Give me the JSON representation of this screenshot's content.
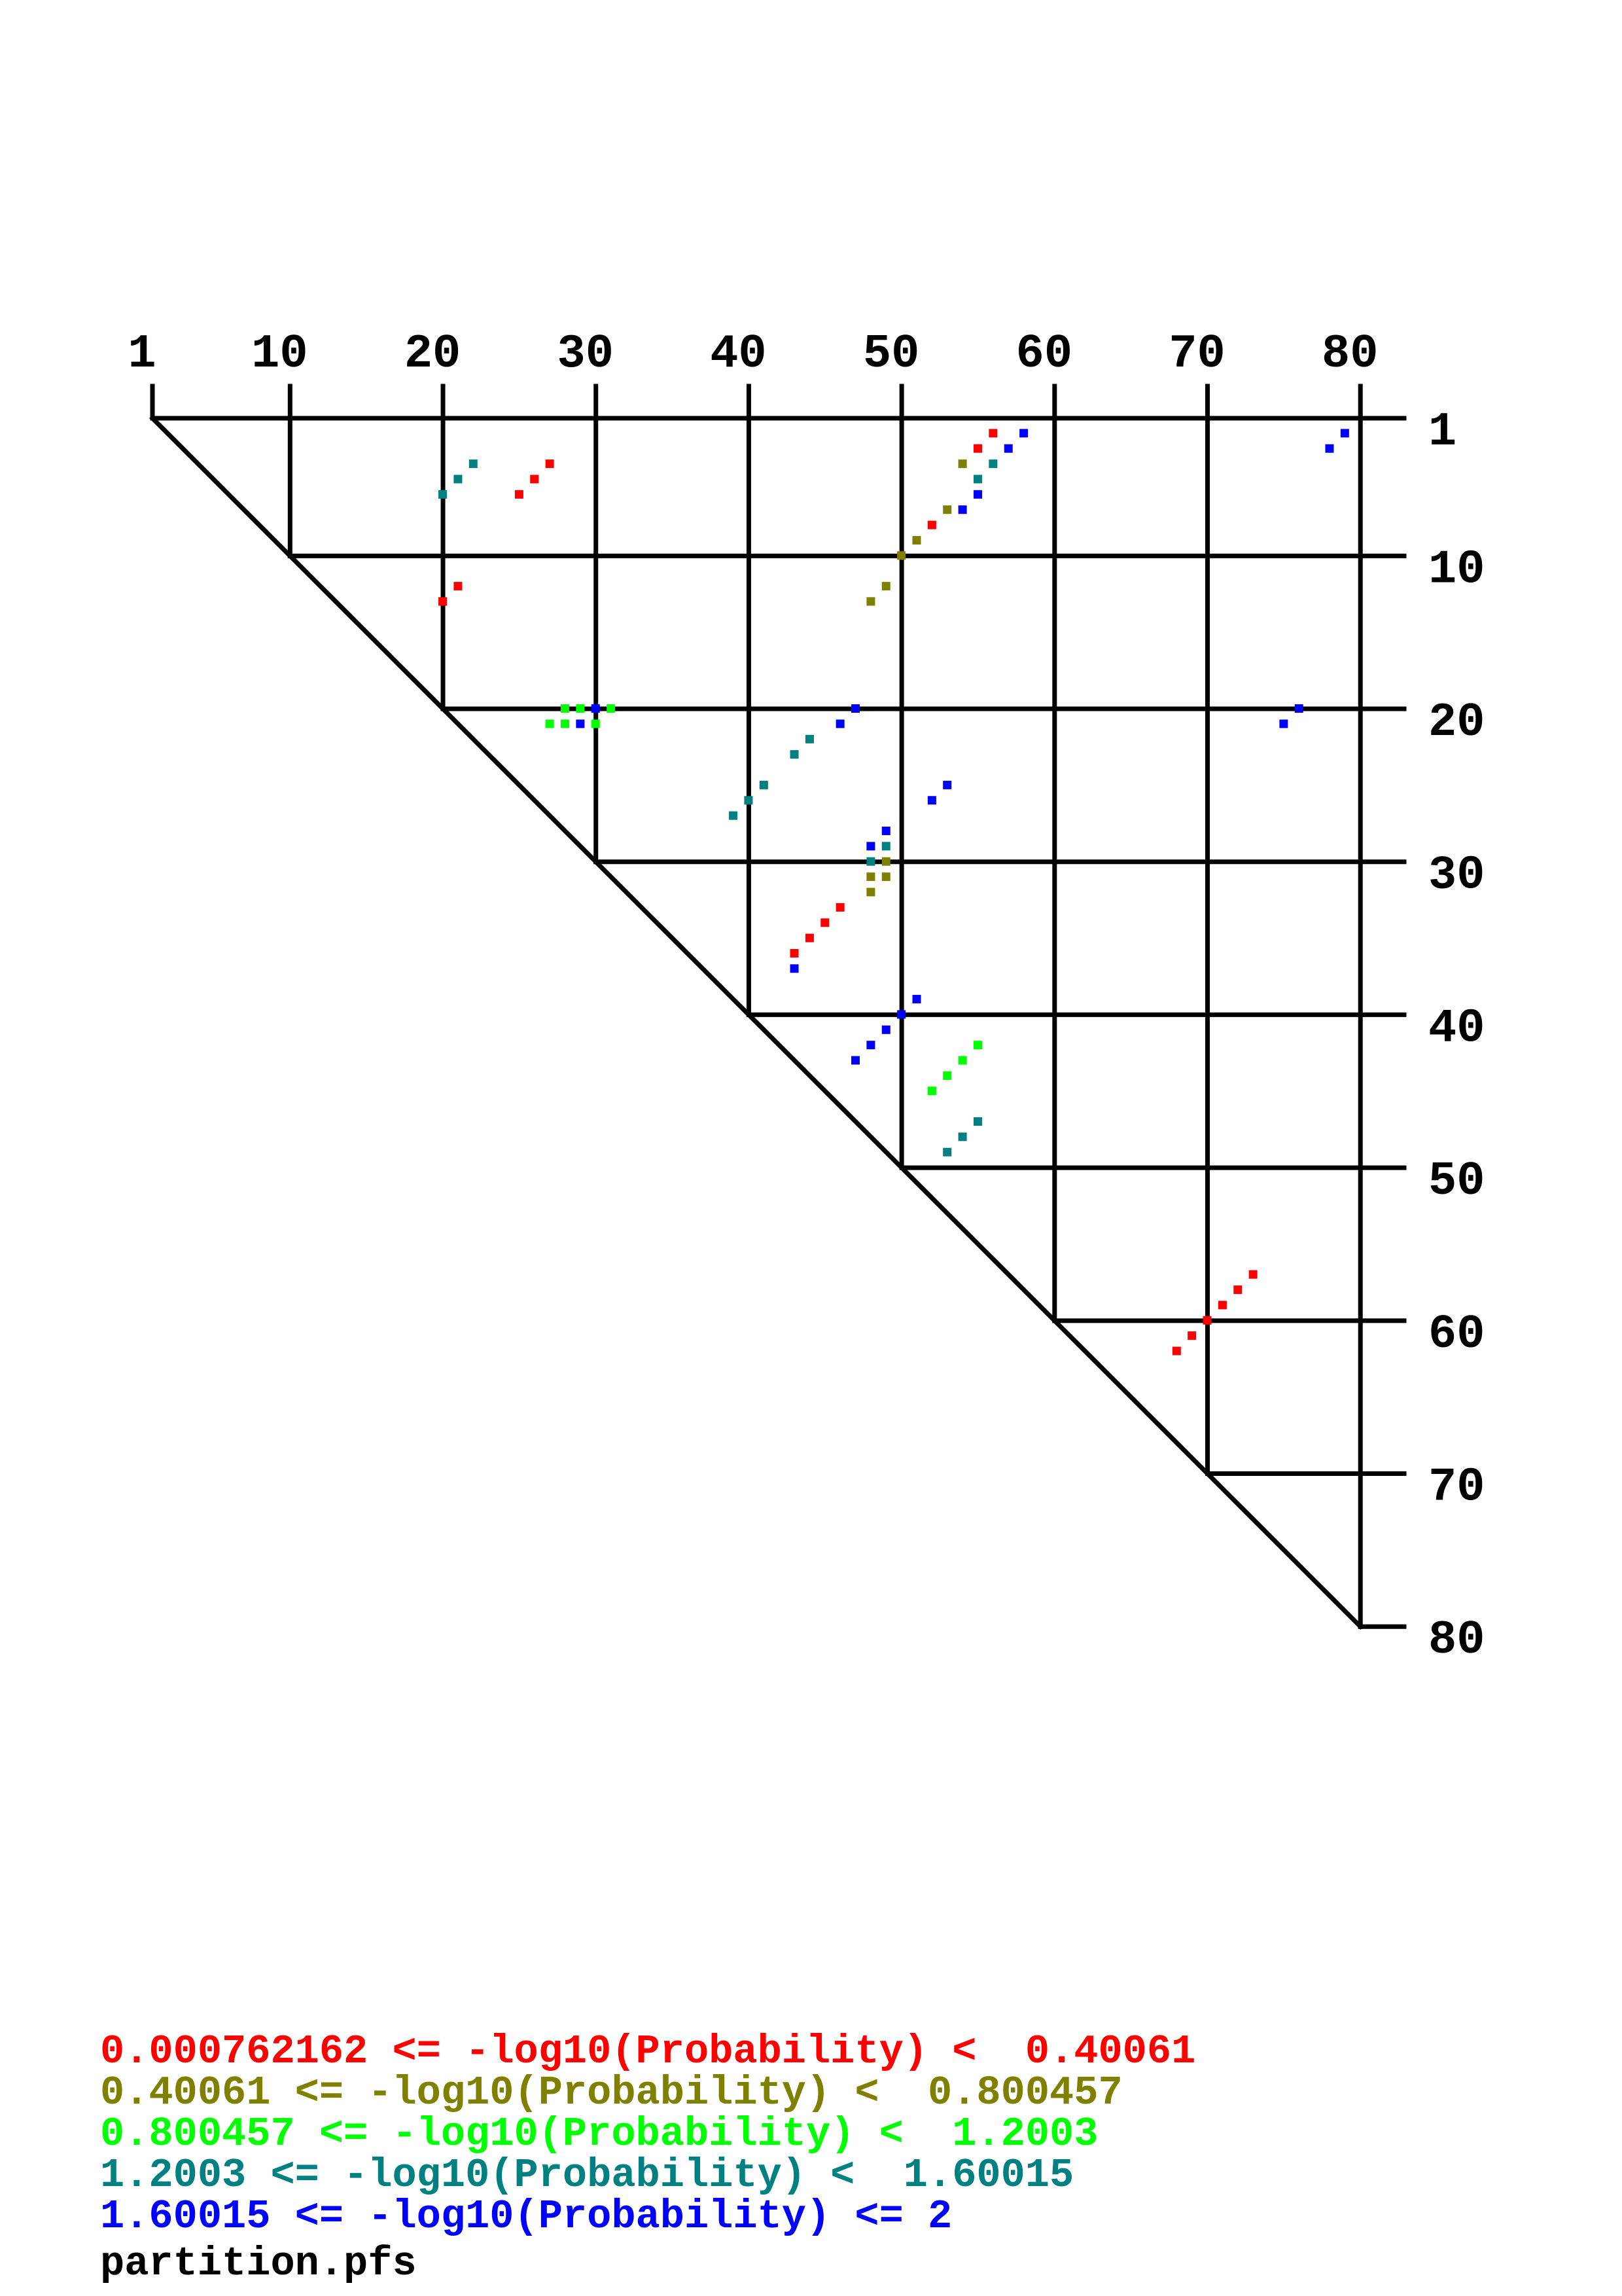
{
  "chart_data": {
    "type": "scatter",
    "subtype": "base-pair probability dot plot (upper triangle)",
    "sequence_length": 80,
    "axis_range": [
      1,
      80
    ],
    "x_ticks": [
      "1",
      "10",
      "20",
      "30",
      "40",
      "50",
      "60",
      "70",
      "80"
    ],
    "y_ticks": [
      "1",
      "10",
      "20",
      "30",
      "40",
      "50",
      "60",
      "70",
      "80"
    ],
    "grid": true,
    "legend_placement": "bottom-left",
    "bins": [
      {
        "label": "0.000762162 <= -log10(Probability) <  0.40061",
        "color": "#FF0000"
      },
      {
        "label": "0.40061 <= -log10(Probability) <  0.800457",
        "color": "#808000"
      },
      {
        "label": "0.800457 <= -log10(Probability) <  1.2003",
        "color": "#00FF00"
      },
      {
        "label": "1.2003 <= -log10(Probability) <  1.60015",
        "color": "#008080"
      },
      {
        "label": "1.60015 <= -log10(Probability) <= 2",
        "color": "#0000FF"
      }
    ],
    "points_fields": [
      "i_row",
      "j_col",
      "bin"
    ],
    "points": [
      [
        4,
        27,
        0
      ],
      [
        5,
        26,
        0
      ],
      [
        6,
        25,
        0
      ],
      [
        12,
        21,
        0
      ],
      [
        13,
        20,
        0
      ],
      [
        2,
        56,
        0
      ],
      [
        3,
        55,
        0
      ],
      [
        8,
        52,
        0
      ],
      [
        33,
        46,
        0
      ],
      [
        34,
        45,
        0
      ],
      [
        35,
        44,
        0
      ],
      [
        36,
        43,
        0
      ],
      [
        57,
        73,
        0
      ],
      [
        58,
        72,
        0
      ],
      [
        59,
        71,
        0
      ],
      [
        60,
        70,
        0
      ],
      [
        61,
        69,
        0
      ],
      [
        62,
        68,
        0
      ],
      [
        4,
        54,
        1
      ],
      [
        7,
        53,
        1
      ],
      [
        9,
        51,
        1
      ],
      [
        10,
        50,
        1
      ],
      [
        12,
        49,
        1
      ],
      [
        13,
        48,
        1
      ],
      [
        30,
        49,
        1
      ],
      [
        31,
        48,
        1
      ],
      [
        31,
        49,
        1
      ],
      [
        32,
        48,
        1
      ],
      [
        20,
        28,
        2
      ],
      [
        20,
        29,
        2
      ],
      [
        20,
        31,
        2
      ],
      [
        21,
        27,
        2
      ],
      [
        21,
        28,
        2
      ],
      [
        21,
        30,
        2
      ],
      [
        42,
        55,
        2
      ],
      [
        43,
        54,
        2
      ],
      [
        44,
        53,
        2
      ],
      [
        45,
        52,
        2
      ],
      [
        4,
        22,
        3
      ],
      [
        5,
        21,
        3
      ],
      [
        6,
        20,
        3
      ],
      [
        4,
        56,
        3
      ],
      [
        5,
        55,
        3
      ],
      [
        22,
        44,
        3
      ],
      [
        23,
        43,
        3
      ],
      [
        25,
        41,
        3
      ],
      [
        26,
        40,
        3
      ],
      [
        27,
        39,
        3
      ],
      [
        29,
        49,
        3
      ],
      [
        30,
        48,
        3
      ],
      [
        47,
        55,
        3
      ],
      [
        48,
        54,
        3
      ],
      [
        49,
        53,
        3
      ],
      [
        2,
        58,
        4
      ],
      [
        3,
        57,
        4
      ],
      [
        6,
        55,
        4
      ],
      [
        7,
        54,
        4
      ],
      [
        2,
        79,
        4
      ],
      [
        3,
        78,
        4
      ],
      [
        20,
        30,
        4
      ],
      [
        21,
        29,
        4
      ],
      [
        20,
        47,
        4
      ],
      [
        21,
        46,
        4
      ],
      [
        25,
        53,
        4
      ],
      [
        26,
        52,
        4
      ],
      [
        28,
        49,
        4
      ],
      [
        29,
        48,
        4
      ],
      [
        37,
        43,
        4
      ],
      [
        39,
        51,
        4
      ],
      [
        40,
        50,
        4
      ],
      [
        41,
        49,
        4
      ],
      [
        42,
        48,
        4
      ],
      [
        43,
        47,
        4
      ],
      [
        20,
        76,
        4
      ],
      [
        21,
        75,
        4
      ]
    ]
  },
  "footer": {
    "filename": "partition.pfs"
  }
}
